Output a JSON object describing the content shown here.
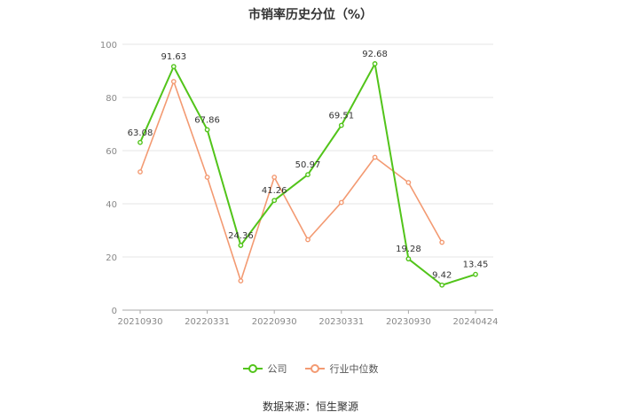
{
  "title": "市销率历史分位（%）",
  "source": "数据来源：恒生聚源",
  "colors": {
    "company": "#52c41a",
    "industry": "#f39a72",
    "grid": "#e6e6e6",
    "axis": "#aaaaaa",
    "label": "#333333"
  },
  "chart_data": {
    "type": "line",
    "x": [
      "20210930",
      "20211231",
      "20220331",
      "20220630",
      "20220930",
      "20221231",
      "20230331",
      "20230630",
      "20230930",
      "20231231",
      "20240424"
    ],
    "x_tick_labels": [
      "20210930",
      "20220331",
      "20220930",
      "20230331",
      "20230930",
      "20240424"
    ],
    "ylim": [
      0,
      100
    ],
    "yticks": [
      0,
      20,
      40,
      60,
      80,
      100
    ],
    "grid": true,
    "legend_position": "bottom-center",
    "series": [
      {
        "name": "公司",
        "color": "#52c41a",
        "values": [
          63.08,
          91.63,
          67.86,
          24.36,
          41.26,
          50.97,
          69.51,
          92.68,
          19.28,
          9.42,
          13.45
        ],
        "labels": [
          "63.08",
          "91.63",
          "67.86",
          "24.36",
          "41.26",
          "50.97",
          "69.51",
          "92.68",
          "19.28",
          "9.42",
          "13.45"
        ]
      },
      {
        "name": "行业中位数",
        "color": "#f39a72",
        "values": [
          52,
          86,
          50,
          11,
          50,
          26.5,
          40.5,
          57.5,
          48,
          25.5,
          null
        ]
      }
    ]
  }
}
